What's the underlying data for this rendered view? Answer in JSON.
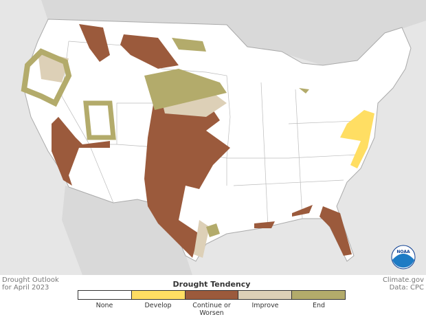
{
  "map": {
    "logo": "NOAA"
  },
  "caption": {
    "title": "Drought Outlook",
    "subtitle": "for April 2023"
  },
  "credit": {
    "source": "Climate.gov",
    "data": "Data: CPC"
  },
  "legend": {
    "title": "Drought Tendency",
    "items": [
      {
        "label": "None",
        "color": "#ffffff"
      },
      {
        "label": "Develop",
        "color": "#ffde63"
      },
      {
        "label": "Continue or Worsen",
        "color": "#9b5a3c"
      },
      {
        "label": "Improve",
        "color": "#ddd0b7"
      },
      {
        "label": "End",
        "color": "#b3ab6b"
      }
    ]
  }
}
